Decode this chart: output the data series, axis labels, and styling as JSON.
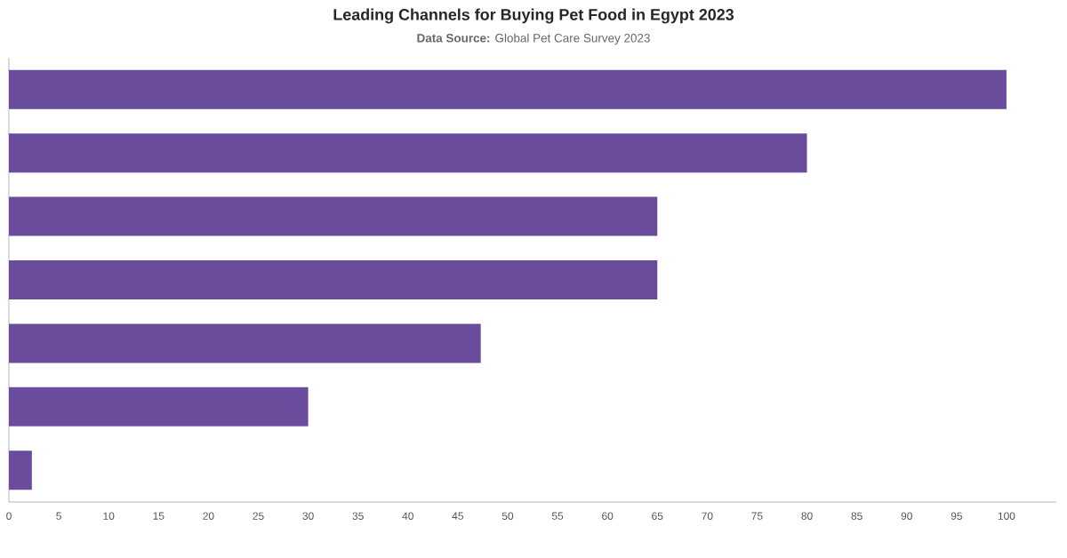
{
  "chart_data": {
    "type": "bar",
    "orientation": "horizontal",
    "title": "Leading Channels for Buying Pet Food in Egypt 2023",
    "subtitle": "**Data Source:** Global Pet Care Survey 2023",
    "categories": [
      null,
      null,
      null,
      null,
      null,
      null,
      null
    ],
    "values": [
      100,
      80,
      65,
      65,
      47.3,
      30,
      2.3
    ],
    "color": "#6a4c9c",
    "xlim": [
      0,
      105
    ],
    "xticks": [
      0,
      5,
      10,
      15,
      20,
      25,
      30,
      35,
      40,
      45,
      50,
      55,
      60,
      65,
      70,
      75,
      80,
      85,
      90,
      95,
      100
    ]
  }
}
